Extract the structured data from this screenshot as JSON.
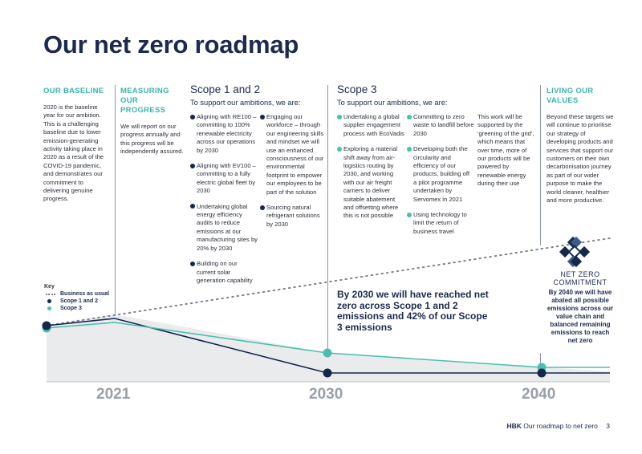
{
  "title": "Our net zero roadmap",
  "baseline": {
    "heading": "OUR BASELINE",
    "text": "2020 is the baseline year for our ambition. This is a challenging baseline due to lower emission-generating activity taking place in 2020 as a result of the COVID-19 pandemic, and demonstrates our commitment to delivering genuine progress."
  },
  "measuring": {
    "heading": "MEASURING OUR PROGRESS",
    "text": "We will report on our progress annually and this progress will be independently assured."
  },
  "scope12": {
    "heading": "Scope 1 and 2",
    "sub": "To support our ambitions, we are:",
    "col1": [
      "Aligning with RE100 – committing to 100% renewable electricity across our operations by 2030",
      "Aligning with EV100 – committing to a fully electric global fleet by 2030",
      "Undertaking global energy efficiency audits to reduce emissions at our manufacturing sites by 20% by 2030",
      "Building on our current solar generation capability"
    ],
    "col2": [
      "Engaging our workforce – through our engineering skills and mindset we will use an enhanced consciousness of our environmental footprint to empower our employees to be part of the solution",
      "Sourcing natural refrigerant solutions by 2030"
    ]
  },
  "scope3": {
    "heading": "Scope 3",
    "sub": "To support our ambitions, we are:",
    "col1": [
      "Undertaking a global supplier engagement process with EcoVadis",
      "Exploring a material shift away from air-logistics routing by 2030, and working with our air freight carriers to deliver suitable abatement and offsetting where this is not possible"
    ],
    "col2": [
      "Committing to zero waste to landfill before 2030",
      "Developing both the circularity and efficiency of our products, building off a pilot programme undertaken by Servomex in 2021",
      "Using technology to limit the return of business travel"
    ],
    "col3": "This work will be supported by the 'greening of the grid', which means that over time, more of our products will be powered by renewable energy during their use"
  },
  "values": {
    "heading": "LIVING OUR VALUES",
    "text": "Beyond these targets we will continue to prioritise our strategy of developing products and services that support our customers on their own decarbonisation journey as part of our wider purpose to make the world cleaner, healthier and more productive."
  },
  "net_zero": {
    "logo_line1": "NET ZERO",
    "logo_line2": "COMMITMENT",
    "text": "By 2040 we will have abated all possible emissions across our value chain and balanced remaining emissions to reach net zero"
  },
  "callout": "By 2030 we will have reached net zero across Scope 1 and 2 emissions and 42% of our Scope 3 emissions",
  "key": {
    "title": "Key",
    "items": [
      "Business as usual",
      "Scope 1 and 2",
      "Scope 3"
    ]
  },
  "years": [
    "2021",
    "2030",
    "2040"
  ],
  "footer": {
    "brand": "HBK",
    "text": "Our roadmap to net zero",
    "page": "3"
  },
  "colors": {
    "navy": "#15284b",
    "teal": "#4bbfae",
    "grey": "#7b8390"
  }
}
